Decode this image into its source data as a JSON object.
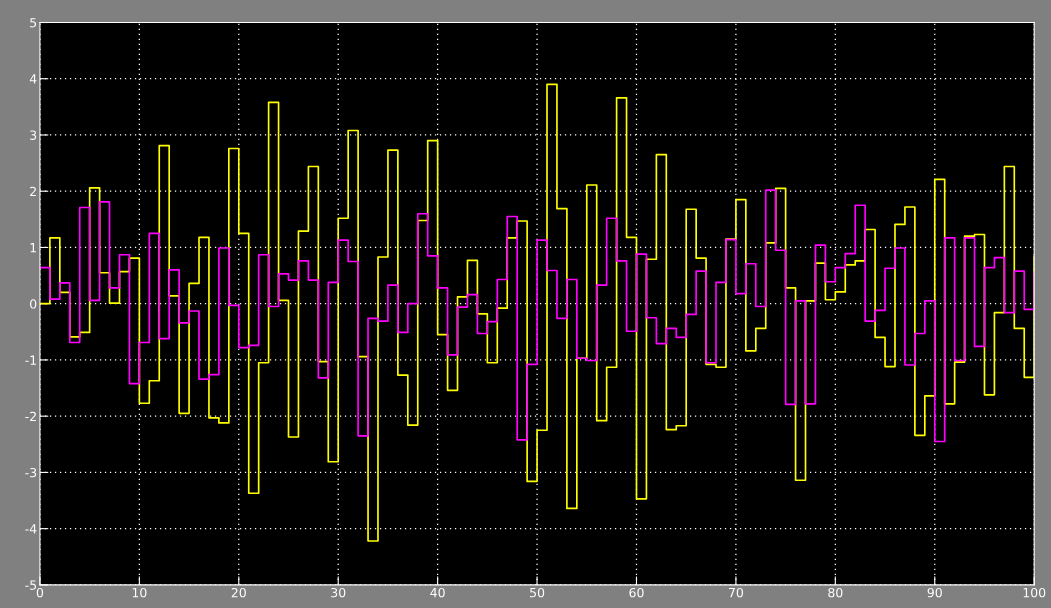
{
  "chart_data": {
    "type": "step",
    "grid": true,
    "xlim": [
      0,
      100
    ],
    "ylim": [
      -5,
      5
    ],
    "xticks": [
      0,
      10,
      20,
      30,
      40,
      50,
      60,
      70,
      80,
      90,
      100
    ],
    "yticks": [
      -5,
      -4,
      -3,
      -2,
      -1,
      0,
      1,
      2,
      3,
      4,
      5
    ],
    "x": [
      0,
      1,
      2,
      3,
      4,
      5,
      6,
      7,
      8,
      9,
      10,
      11,
      12,
      13,
      14,
      15,
      16,
      17,
      18,
      19,
      20,
      21,
      22,
      23,
      24,
      25,
      26,
      27,
      28,
      29,
      30,
      31,
      32,
      33,
      34,
      35,
      36,
      37,
      38,
      39,
      40,
      41,
      42,
      43,
      44,
      45,
      46,
      47,
      48,
      49,
      50,
      51,
      52,
      53,
      54,
      55,
      56,
      57,
      58,
      59,
      60,
      61,
      62,
      63,
      64,
      65,
      66,
      67,
      68,
      69,
      70,
      71,
      72,
      73,
      74,
      75,
      76,
      77,
      78,
      79,
      80,
      81,
      82,
      83,
      84,
      85,
      86,
      87,
      88,
      89,
      90,
      91,
      92,
      93,
      94,
      95,
      96,
      97,
      98,
      99,
      100
    ],
    "series": [
      {
        "color": "#ffff00",
        "values": [
          0,
          1.17,
          0.2,
          -0.59,
          -0.51,
          2.06,
          0.55,
          0.01,
          0.57,
          0.81,
          -1.77,
          -1.37,
          2.81,
          0.14,
          -1.95,
          0.36,
          1.18,
          -2.03,
          -2.12,
          2.76,
          1.25,
          -3.37,
          -1.05,
          3.58,
          0.06,
          -2.37,
          1.29,
          2.44,
          -1.03,
          -2.81,
          1.52,
          3.08,
          -0.94,
          -4.22,
          0.83,
          2.73,
          -1.27,
          -2.16,
          1.48,
          2.9,
          -0.55,
          -1.54,
          0.12,
          0.77,
          -0.18,
          -1.05,
          -0.08,
          1.17,
          1.47,
          -3.16,
          -2.25,
          3.9,
          1.69,
          -3.64,
          -0.97,
          2.11,
          -2.08,
          -1.13,
          3.66,
          1.18,
          -3.47,
          0.79,
          2.65,
          -2.24,
          -2.17,
          1.68,
          0.81,
          -1.08,
          -1.13,
          1.15,
          1.85,
          -0.84,
          -0.44,
          1.08,
          2.05,
          0.28,
          -3.14,
          0.05,
          0.72,
          0.07,
          0.21,
          0.69,
          0.76,
          1.32,
          -0.6,
          -1.12,
          1.41,
          1.72,
          -2.34,
          -1.64,
          2.21,
          -1.78,
          -1.04,
          1.2,
          1.23,
          -1.62,
          -0.16,
          2.44,
          -0.44,
          -1.31,
          0.84
        ]
      },
      {
        "color": "#ff00ff",
        "values": [
          0.64,
          0.08,
          0.37,
          -0.69,
          1.71,
          0.06,
          1.81,
          0.28,
          0.87,
          -1.42,
          -0.69,
          1.25,
          -0.62,
          0.6,
          -0.34,
          -0.13,
          -1.34,
          -1.26,
          0.99,
          -0.03,
          -0.78,
          -0.74,
          0.87,
          -0.05,
          0.53,
          0.42,
          0.76,
          0.42,
          -1.32,
          0.38,
          1.13,
          0.75,
          -2.35,
          -0.26,
          -0.31,
          0.33,
          -0.51,
          0.0,
          1.6,
          0.85,
          0.28,
          -0.91,
          -0.06,
          0.16,
          -0.53,
          -0.32,
          0.43,
          1.55,
          -2.42,
          -1.08,
          1.13,
          0.59,
          -0.26,
          0.43,
          -0.97,
          -1.01,
          0.33,
          1.52,
          0.76,
          -0.49,
          0.88,
          -0.25,
          -0.71,
          -0.44,
          -0.6,
          -0.19,
          0.58,
          -1.05,
          0.38,
          1.14,
          0.18,
          0.71,
          -0.05,
          2.02,
          0.95,
          -1.79,
          0.05,
          -1.78,
          1.04,
          0.39,
          0.64,
          0.89,
          1.75,
          -0.31,
          -0.12,
          0.63,
          0.99,
          -1.09,
          -0.53,
          0.05,
          -2.45,
          1.17,
          -1.01,
          1.17,
          -0.76,
          0.64,
          0.82,
          -0.16,
          0.58,
          -0.1,
          0.55
        ]
      }
    ]
  }
}
